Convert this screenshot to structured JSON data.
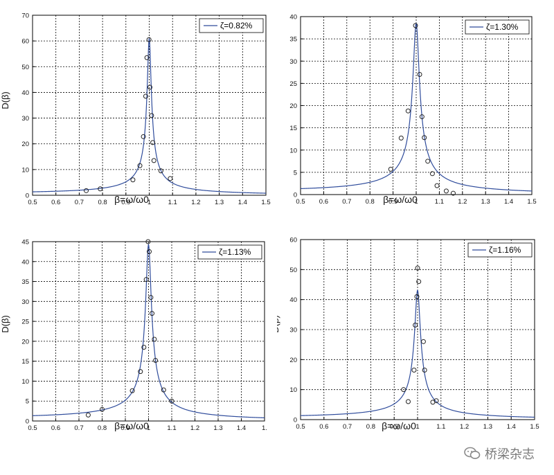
{
  "watermark": {
    "text": "桥梁杂志",
    "icon": "wechat-icon"
  },
  "chart_data": [
    {
      "type": "line",
      "legend": "ζ=0.82%",
      "legend_position": "top-right",
      "zeta": 0.0082,
      "xlabel": "β=ω/ω0",
      "ylabel": "D(β)",
      "xlim": [
        0.5,
        1.5
      ],
      "ylim": [
        0,
        70
      ],
      "xticks": [
        "0.5",
        "0.6",
        "0.7",
        "0.8",
        "0.9",
        "1",
        "1.1",
        "1.2",
        "1.3",
        "1.4",
        "1.5"
      ],
      "yticks": [
        "0",
        "10",
        "20",
        "30",
        "40",
        "50",
        "60",
        "70"
      ],
      "grid": true,
      "line_color": "#2e4b9b",
      "points": [
        [
          0.73,
          1.8
        ],
        [
          0.79,
          2.5
        ],
        [
          0.93,
          6
        ],
        [
          0.96,
          11.5
        ],
        [
          0.975,
          22.8
        ],
        [
          0.985,
          38.5
        ],
        [
          0.99,
          53.5
        ],
        [
          0.999,
          60.5
        ],
        [
          1.003,
          42
        ],
        [
          1.01,
          31
        ],
        [
          1.015,
          20.5
        ],
        [
          1.02,
          13.5
        ],
        [
          1.05,
          9.5
        ],
        [
          1.09,
          6.5
        ]
      ]
    },
    {
      "type": "line",
      "legend": "ζ=1.30%",
      "legend_position": "top-right",
      "zeta": 0.013,
      "xlabel": "β=ω/ω0",
      "ylabel": "",
      "xlim": [
        0.5,
        1.5
      ],
      "ylim": [
        0,
        40
      ],
      "xticks": [
        "0.5",
        "0.6",
        "0.7",
        "0.8",
        "0.9",
        "1",
        "1.1",
        "1.2",
        "1.3",
        "1.4",
        "1.5"
      ],
      "yticks": [
        "0",
        "5",
        "10",
        "15",
        "20",
        "25",
        "30",
        "35",
        "40"
      ],
      "grid": true,
      "line_color": "#2e4b9b",
      "points": [
        [
          0.89,
          5.7
        ],
        [
          0.935,
          12.7
        ],
        [
          0.965,
          18.8
        ],
        [
          0.997,
          38
        ],
        [
          1.015,
          27
        ],
        [
          1.025,
          17.5
        ],
        [
          1.035,
          12.8
        ],
        [
          1.05,
          7.5
        ],
        [
          1.07,
          4.7
        ],
        [
          1.09,
          2
        ],
        [
          1.13,
          0.8
        ],
        [
          1.16,
          0.3
        ]
      ]
    },
    {
      "type": "line",
      "legend": "ζ=1.13%",
      "legend_position": "top-right",
      "zeta": 0.0113,
      "xlabel": "β=ω/ω0",
      "ylabel": "D(β)",
      "xlim": [
        0.5,
        1.5
      ],
      "ylim": [
        0,
        45
      ],
      "xticks": [
        "0.5",
        "0.6",
        "0.7",
        "0.8",
        "0.9",
        "1",
        "1.1",
        "1.2",
        "1.3",
        "1.4",
        "1."
      ],
      "yticks": [
        "0",
        "5",
        "10",
        "15",
        "20",
        "25",
        "30",
        "35",
        "40",
        "45"
      ],
      "grid": true,
      "line_color": "#2e4b9b",
      "points": [
        [
          0.74,
          1.5
        ],
        [
          0.8,
          2.9
        ],
        [
          0.93,
          7.6
        ],
        [
          0.965,
          12.4
        ],
        [
          0.98,
          18.5
        ],
        [
          0.99,
          35.5
        ],
        [
          0.998,
          45
        ],
        [
          1.003,
          42.5
        ],
        [
          1.01,
          31
        ],
        [
          1.015,
          27
        ],
        [
          1.025,
          20.5
        ],
        [
          1.03,
          15.2
        ],
        [
          1.065,
          7.8
        ],
        [
          1.1,
          5
        ]
      ]
    },
    {
      "type": "line",
      "legend": "ζ=1.16%",
      "legend_position": "top-right",
      "zeta": 0.0116,
      "xlabel": "β=ω/ω0",
      "ylabel": "D(β)",
      "xlim": [
        0.5,
        1.5
      ],
      "ylim": [
        0,
        60
      ],
      "xticks": [
        "0.5",
        "0.6",
        "0.7",
        "0.8",
        "0.9",
        "1",
        "1.1",
        "1.2",
        "1.3",
        "1.4",
        "1.5"
      ],
      "yticks": [
        "0",
        "10",
        "20",
        "30",
        "40",
        "50",
        "60"
      ],
      "grid": true,
      "line_color": "#2e4b9b",
      "points": [
        [
          0.94,
          10
        ],
        [
          0.96,
          6
        ],
        [
          0.985,
          16.5
        ],
        [
          0.99,
          31.5
        ],
        [
          0.997,
          41
        ],
        [
          1.0,
          50.5
        ],
        [
          1.005,
          46
        ],
        [
          1.025,
          26
        ],
        [
          1.03,
          16.5
        ],
        [
          1.065,
          5.8
        ],
        [
          1.08,
          6.3
        ]
      ]
    }
  ]
}
